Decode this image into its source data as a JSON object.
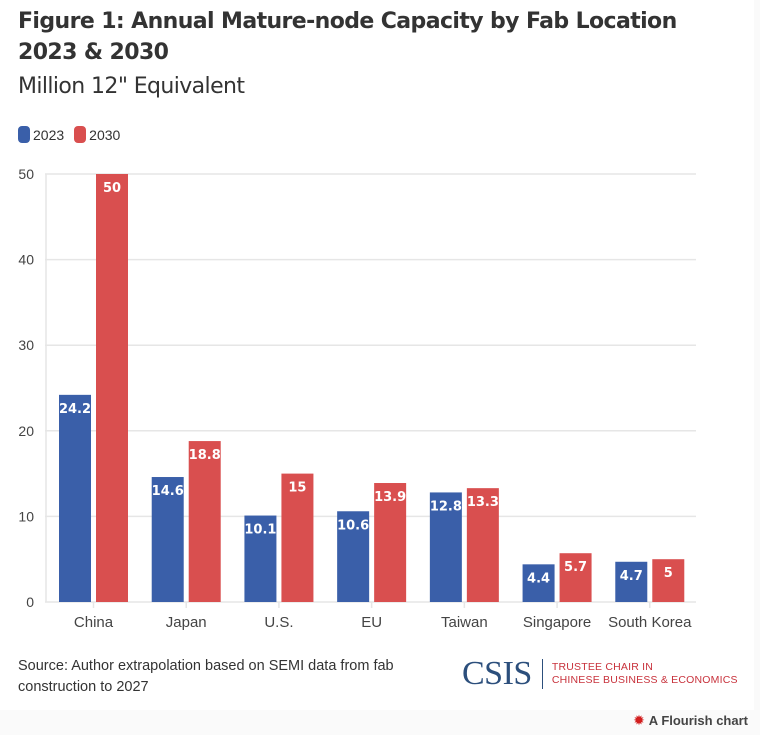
{
  "header": {
    "title": "Figure 1: Annual Mature-node Capacity by Fab Location 2023 & 2030",
    "subtitle": "Million 12\" Equivalent"
  },
  "legend": [
    {
      "label": "2023",
      "color": "#3a5fa9"
    },
    {
      "label": "2030",
      "color": "#d94f4f"
    }
  ],
  "chart_data": {
    "type": "bar",
    "title": "Figure 1: Annual Mature-node Capacity by Fab Location 2023 & 2030",
    "subtitle": "Million 12\" Equivalent",
    "xlabel": "",
    "ylabel": "",
    "categories": [
      "China",
      "Japan",
      "U.S.",
      "EU",
      "Taiwan",
      "Singapore",
      "South Korea"
    ],
    "series": [
      {
        "name": "2023",
        "color": "#3a5fa9",
        "values": [
          24.2,
          14.6,
          10.1,
          10.6,
          12.8,
          4.4,
          4.7
        ]
      },
      {
        "name": "2030",
        "color": "#d94f4f",
        "values": [
          50,
          18.8,
          15,
          13.9,
          13.3,
          5.7,
          5
        ]
      }
    ],
    "ylim": [
      0,
      50
    ],
    "yticks": [
      0,
      10,
      20,
      30,
      40,
      50
    ],
    "grid": true,
    "legend_position": "top-left",
    "data_labels": true
  },
  "footer": {
    "source": "Source: Author extrapolation based on SEMI data from fab construction to 2027",
    "logo_text": "CSIS",
    "logo_sub_line1": "TRUSTEE CHAIR IN",
    "logo_sub_line2": "CHINESE BUSINESS & ECONOMICS",
    "credit": "A Flourish chart",
    "credit_icon": "flourish-burst-icon"
  }
}
